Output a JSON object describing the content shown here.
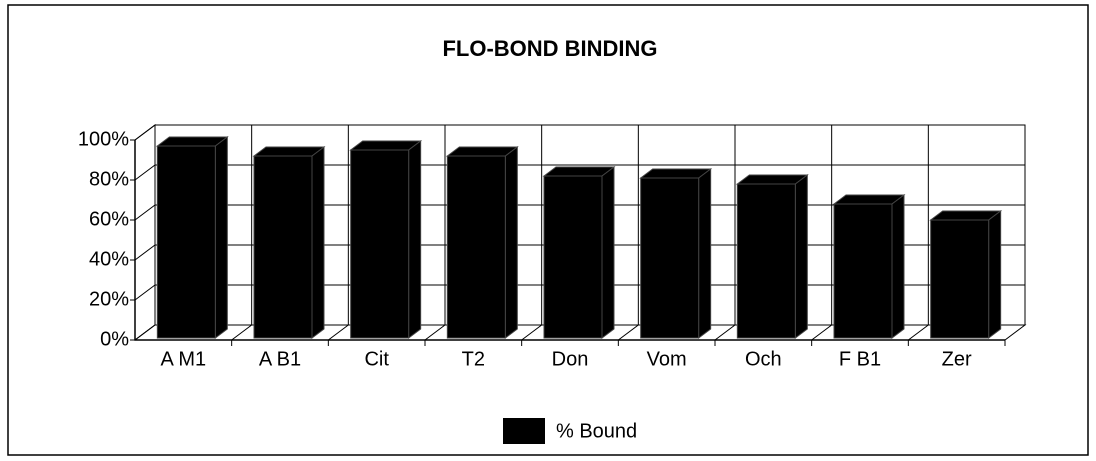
{
  "chart_data": {
    "type": "bar",
    "title": "FLO-BOND BINDING",
    "categories": [
      "A M1",
      "A B1",
      "Cit",
      "T2",
      "Don",
      "Vom",
      "Och",
      "F B1",
      "Zer"
    ],
    "series": [
      {
        "name": "% Bound",
        "color": "#000000",
        "values": [
          97,
          92,
          95,
          92,
          82,
          81,
          78,
          68,
          60
        ]
      }
    ],
    "ylim": [
      0,
      100
    ],
    "yticks": [
      {
        "value": 0,
        "label": "0%"
      },
      {
        "value": 20,
        "label": "20%"
      },
      {
        "value": 40,
        "label": "40%"
      },
      {
        "value": 60,
        "label": "60%"
      },
      {
        "value": 80,
        "label": "80%"
      },
      {
        "value": 100,
        "label": "100%"
      }
    ],
    "grid": true,
    "legend": "bottom"
  }
}
